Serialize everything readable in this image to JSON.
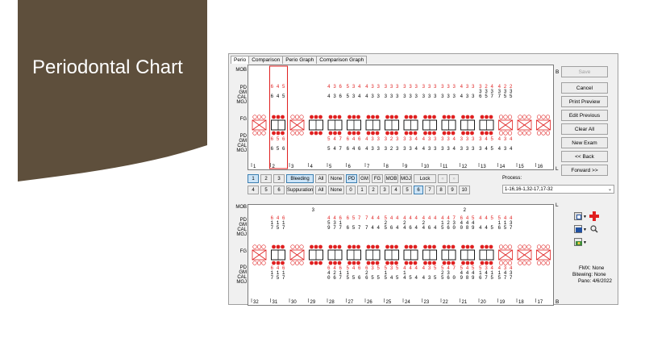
{
  "slide": {
    "title": "Periodontal Chart"
  },
  "tabs": [
    "Perio",
    "Comparison",
    "Perio Graph",
    "Comparison Graph"
  ],
  "row_labels_top": [
    "MOB",
    "",
    "PD",
    "GM",
    "CAL",
    "MGJ",
    "FG",
    "PD",
    "GM",
    "CAL",
    "MGJ"
  ],
  "panel_letters": {
    "upper_b": "B",
    "upper_l": "L",
    "lower_l": "L",
    "lower_b": "B"
  },
  "upper": {
    "pd_top": [
      "6 4 5",
      "",
      "4 3 6",
      "5 3 4",
      "4 3 3",
      "3 3 3",
      "3 3 3",
      "3 3 3",
      "3 3 3",
      "4 3 3",
      "3 2 4",
      "4 2 2"
    ],
    "gm_top": [
      "",
      "",
      "",
      "",
      "",
      "",
      "",
      "",
      "",
      "",
      "3 3 3",
      "3 3 3"
    ],
    "cal_top": [
      "6 4 5",
      "",
      "4 3 6",
      "5 3 4",
      "4 3 3",
      "3 3 3",
      "3 3 3",
      "3 3 3",
      "3 3 3",
      "4 3 3",
      "6 5 7",
      "7 5 5"
    ],
    "pd_bot": [
      "6 5 6",
      "",
      "5 4 7",
      "6 4 6",
      "4 3 3",
      "3 2 3",
      "3 3 4",
      "4 3 3",
      "3 3 4",
      "3 3 3",
      "3 4 5",
      "4 3 4"
    ],
    "cal_bot": [
      "6 5 6",
      "",
      "5 4 7",
      "6 4 6",
      "4 3 3",
      "3 2 3",
      "3 3 4",
      "4 3 3",
      "3 3 4",
      "3 3 3",
      "3 4 5",
      "4 3 4"
    ],
    "tooth_numbers": [
      "1",
      "2",
      "3",
      "4",
      "5",
      "6",
      "7",
      "8",
      "9",
      "10",
      "11",
      "12",
      "13",
      "14",
      "15",
      "16"
    ]
  },
  "lower": {
    "mob": [
      "3",
      "2"
    ],
    "pd_top": [
      "6 4 6",
      "",
      "4 4 6",
      "6 5 7",
      "7 4 4",
      "5 4 4",
      "4 4 4",
      "4 4 4",
      "4 4 7",
      "6 4 5",
      "4 4 5",
      "5 4 4"
    ],
    "gm_top": [
      "1 1 1",
      "",
      "5 3 1",
      "",
      "",
      "2",
      "2",
      "2",
      "1 2 3",
      "4 4 4",
      "",
      "1 1 3"
    ],
    "cal_top": [
      "7 5 7",
      "",
      "9 7 7",
      "6 5 7",
      "7 4 4",
      "5 6 4",
      "4 6 4",
      "4 6 4",
      "5 6 0",
      "0 8 9",
      "4 4 5",
      "6 5 7"
    ],
    "pd_bot": [
      "6 4 6",
      "",
      "6 4 6",
      "5 4 6",
      "6 3 5",
      "5 3 5",
      "4 4 4",
      "4 3 5",
      "5 4 7",
      "5 4 5",
      "5 3 4",
      "4 3 4"
    ],
    "gm_bot": [
      "1 1 1",
      "",
      "4 2 1",
      "1",
      "2",
      "1",
      "1",
      "",
      "2 3",
      "4 4 4",
      "1 4 1",
      "1 4 3"
    ],
    "cal_bot": [
      "7 5 7",
      "",
      "0 6 7",
      "5 5 6",
      "6 5 5",
      "5 4 5",
      "4 5 4",
      "4 3 5",
      "5 6 0",
      "9 8 9",
      "6 7 5",
      "5 7 7"
    ],
    "tooth_numbers": [
      "32",
      "31",
      "30",
      "29",
      "28",
      "27",
      "26",
      "25",
      "24",
      "23",
      "22",
      "21",
      "20",
      "19",
      "18",
      "17"
    ]
  },
  "toolbar": {
    "row1": [
      "1",
      "2",
      "3",
      "Bleeding",
      "All",
      "None",
      "PD",
      "GM",
      "FG",
      "MOB",
      "MGJ",
      "Lock",
      "«",
      "»"
    ],
    "row2": [
      "4",
      "5",
      "6",
      "Suppuration",
      "All",
      "None",
      "0",
      "1",
      "2",
      "3",
      "4",
      "5",
      "6",
      "7",
      "8",
      "9",
      "10"
    ],
    "process_label": "Process:",
    "process_value": "1-16,16-1,32-17,17-32"
  },
  "side_buttons": [
    "Save",
    "Cancel",
    "Print Preview",
    "Edit Previous",
    "Clear All",
    "New Exam",
    "<< Back",
    "Forward >>"
  ],
  "info": {
    "fmx": "FMX: None",
    "bitewing": "Bitewing: None",
    "pano": "Pano: 4/6/2022"
  },
  "colors": {
    "red": "#e02020",
    "slide_brown": "#5e4f3c",
    "accent_blue": "#cce4f7"
  },
  "icons": [
    "tooth-chart-icon",
    "red-cross-icon",
    "xray-icon",
    "search-icon",
    "camera-icon"
  ]
}
